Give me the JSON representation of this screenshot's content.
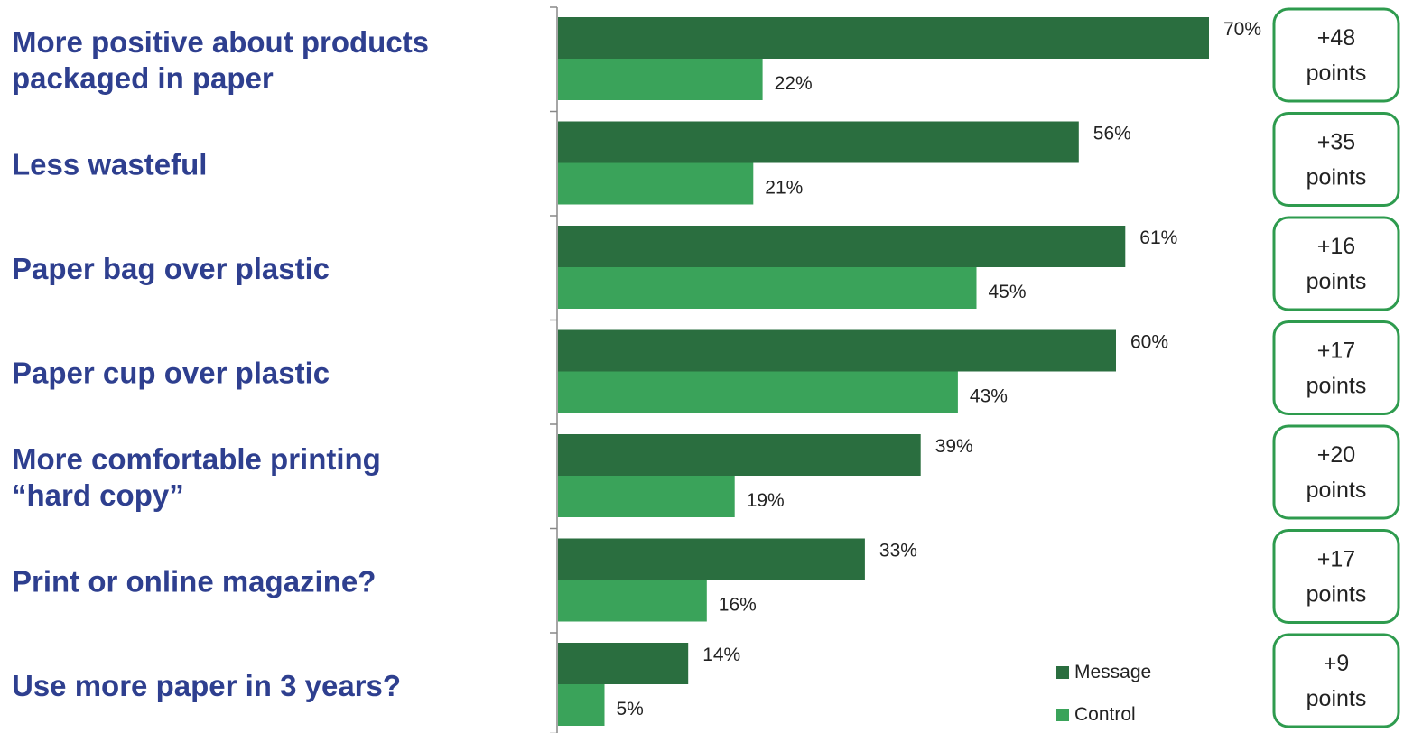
{
  "chart_data": {
    "type": "bar",
    "orientation": "horizontal",
    "categories": [
      [
        "More positive about products",
        "packaged in paper"
      ],
      [
        "Less wasteful"
      ],
      [
        "Paper bag over plastic"
      ],
      [
        "Paper cup over plastic"
      ],
      [
        "More comfortable printing",
        "“hard copy”"
      ],
      [
        "Print or online magazine?"
      ],
      [
        "Use more paper in 3 years?"
      ]
    ],
    "series": [
      {
        "name": "Message",
        "color": "#2a6e3f",
        "values": [
          70,
          56,
          61,
          60,
          39,
          33,
          14
        ],
        "labels": [
          "70%",
          "56%",
          "61%",
          "60%",
          "39%",
          "33%",
          "14%"
        ]
      },
      {
        "name": "Control",
        "color": "#3aa35a",
        "values": [
          22,
          21,
          45,
          43,
          19,
          16,
          5
        ],
        "labels": [
          "22%",
          "21%",
          "45%",
          "43%",
          "19%",
          "16%",
          "5%"
        ]
      }
    ],
    "differences": [
      {
        "value": "+48",
        "unit": "points"
      },
      {
        "value": "+35",
        "unit": "points"
      },
      {
        "value": "+16",
        "unit": "points"
      },
      {
        "value": "+17",
        "unit": "points"
      },
      {
        "value": "+20",
        "unit": "points"
      },
      {
        "value": "+17",
        "unit": "points"
      },
      {
        "value": "+9",
        "unit": "points"
      }
    ],
    "xlim": [
      0,
      70
    ],
    "grid": false,
    "legend_position": "bottom-right",
    "difference_box_color": "#2e9b4e"
  }
}
